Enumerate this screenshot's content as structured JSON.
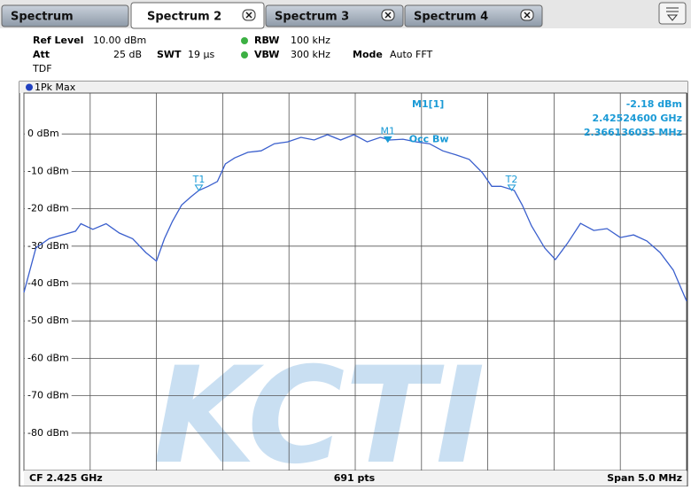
{
  "tabs": [
    "Spectrum",
    "Spectrum 2",
    "Spectrum 3",
    "Spectrum 4"
  ],
  "active_tab": 1,
  "settings": {
    "ref_level_label": "Ref Level",
    "ref_level": "10.00 dBm",
    "att_label": "Att",
    "att": "25 dB",
    "swt_label": "SWT",
    "swt": "19 µs",
    "rbw_label": "RBW",
    "rbw": "100 kHz",
    "vbw_label": "VBW",
    "vbw": "300 kHz",
    "mode_label": "Mode",
    "mode": "Auto FFT",
    "tdf": "TDF"
  },
  "chart_data": {
    "type": "line",
    "x": [
      2.4225,
      2.42259,
      2.42269,
      2.42279,
      2.42289,
      2.42293,
      2.42302,
      2.42312,
      2.42322,
      2.42332,
      2.42342,
      2.4235,
      2.42356,
      2.42362,
      2.42369,
      2.42376,
      2.42382,
      2.42389,
      2.42396,
      2.42402,
      2.42409,
      2.42419,
      2.42429,
      2.42439,
      2.42449,
      2.42459,
      2.42469,
      2.42479,
      2.42489,
      2.42499,
      2.42509,
      2.42519,
      2.42526,
      2.42536,
      2.42546,
      2.42556,
      2.42566,
      2.42576,
      2.42586,
      2.42596,
      2.42603,
      2.4261,
      2.4262,
      2.42626,
      2.42633,
      2.42643,
      2.42651,
      2.4266,
      2.4267,
      2.4268,
      2.4269,
      2.427,
      2.4271,
      2.4272,
      2.4273,
      2.4274,
      2.4275
    ],
    "series": [
      {
        "name": "1Pk Max",
        "color": "#3a5fcd",
        "values": [
          -42.4,
          -30.5,
          -28,
          -27,
          -26,
          -24,
          -25.5,
          -24,
          -26.5,
          -28,
          -31.7,
          -34,
          -28,
          -23.4,
          -19,
          -16.8,
          -15.1,
          -14,
          -12.7,
          -8,
          -6.4,
          -4.9,
          -4.5,
          -2.6,
          -2.1,
          -0.9,
          -1.6,
          -0.2,
          -1.6,
          -0.2,
          -2.1,
          -0.9,
          -1.6,
          -1.4,
          -2.1,
          -2.6,
          -4.5,
          -5.6,
          -6.8,
          -10.4,
          -14,
          -14,
          -15.1,
          -19,
          -24.6,
          -30.5,
          -33.6,
          -29.3,
          -23.9,
          -25.8,
          -25.3,
          -27.7,
          -27,
          -28.6,
          -31.7,
          -36.4,
          -44.7
        ]
      }
    ],
    "xlim": [
      2.4225,
      2.4275
    ],
    "xticks": [
      2.4225,
      2.423,
      2.4235,
      2.424,
      2.4245,
      2.425,
      2.4255,
      2.426,
      2.4265,
      2.427,
      2.4275
    ],
    "ylim": [
      -90,
      10
    ],
    "yticks": [
      {
        "value": 0,
        "label": "0 dBm"
      },
      {
        "value": -10,
        "label": "-10 dBm"
      },
      {
        "value": -20,
        "label": "-20 dBm"
      },
      {
        "value": -30,
        "label": "-30 dBm"
      },
      {
        "value": -40,
        "label": "-40 dBm"
      },
      {
        "value": -50,
        "label": "-50 dBm"
      },
      {
        "value": -60,
        "label": "-60 dBm"
      },
      {
        "value": -70,
        "label": "-70 dBm"
      },
      {
        "value": -80,
        "label": "-80 dBm"
      }
    ],
    "grid": true,
    "markers": [
      {
        "label": "T1",
        "x": 2.42382,
        "y": -15.1
      },
      {
        "label": "M1",
        "x": 2.425246,
        "y": -2.18
      },
      {
        "label": "T2",
        "x": 2.42618,
        "y": -15.1
      }
    ],
    "occ_bw_label": "Occ Bw",
    "readout": {
      "name": "M1[1]",
      "level": "-2.18 dBm",
      "frequency": "2.42524600 GHz",
      "occ_bw": "2.366136035 MHz"
    },
    "footer": {
      "left": "CF 2.425 GHz",
      "center": "691 pts",
      "right": "Span 5.0 MHz"
    },
    "watermark": "KCTI"
  }
}
